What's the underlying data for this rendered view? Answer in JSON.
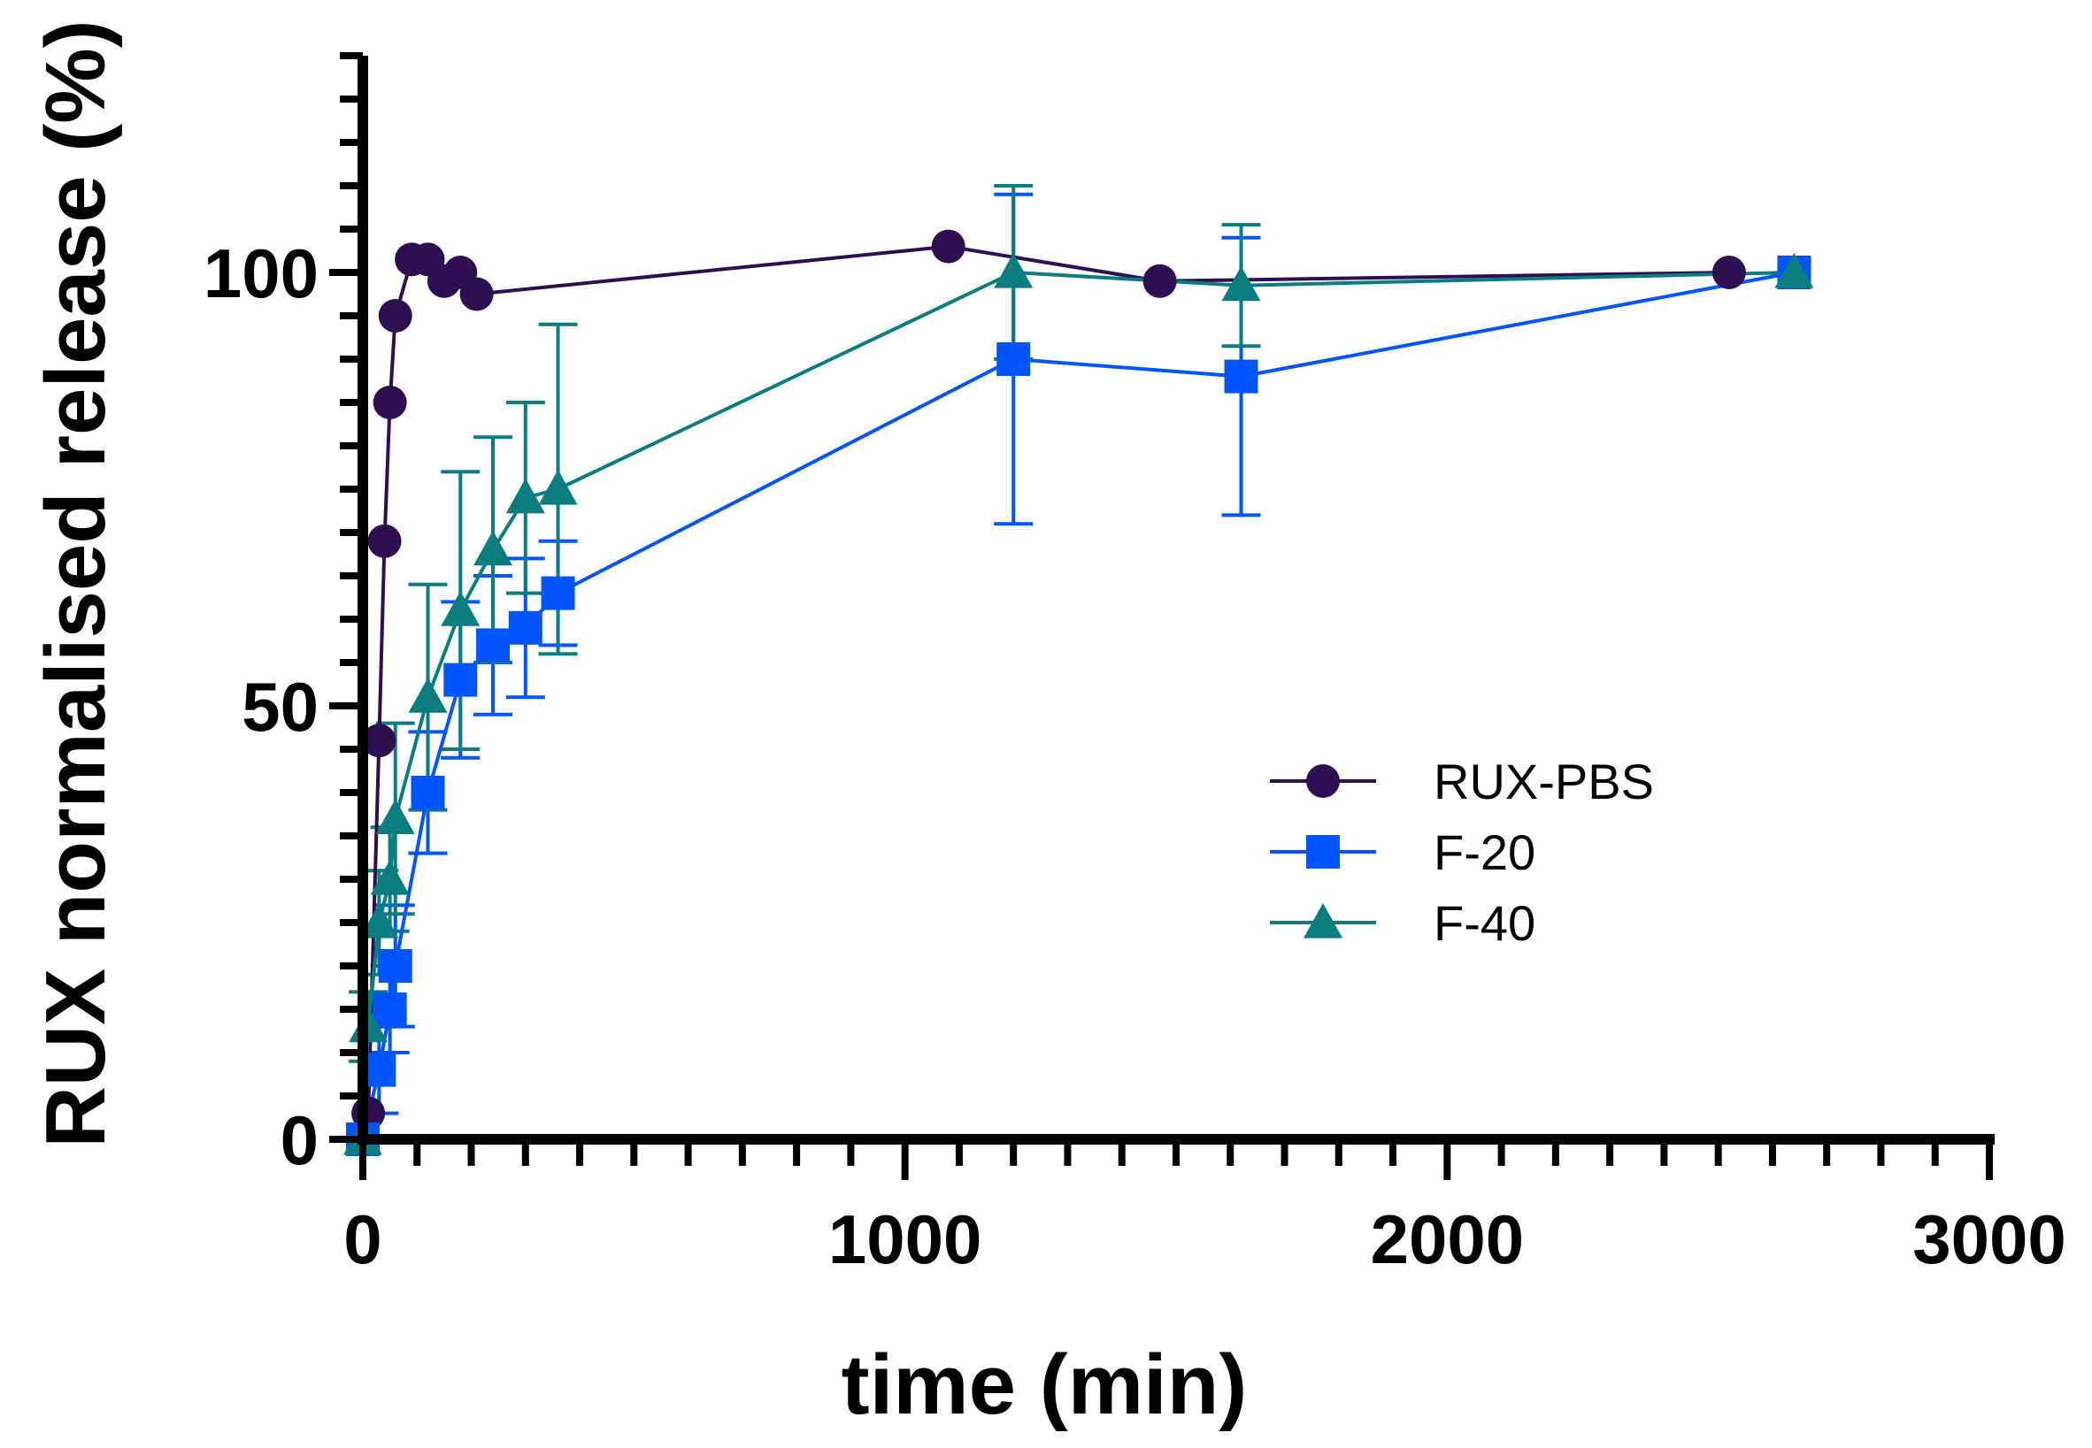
{
  "chart_data": {
    "type": "line",
    "title": "",
    "xlabel": "time (min)",
    "ylabel": "RUX normalised release (%)",
    "xlim": [
      0,
      3000
    ],
    "ylim": [
      0,
      125
    ],
    "x_ticks": [
      0,
      1000,
      2000,
      3000
    ],
    "x_tick_labels": [
      "0",
      "1000",
      "2000",
      "3000"
    ],
    "y_ticks": [
      0,
      50,
      100
    ],
    "y_tick_labels": [
      "0",
      "50",
      "100"
    ],
    "grid": false,
    "legend_position": "center-right",
    "series": [
      {
        "name": "RUX-PBS",
        "color": "#2d0f52",
        "marker": "circle",
        "x": [
          0,
          10,
          30,
          40,
          50,
          60,
          90,
          120,
          150,
          180,
          210,
          1080,
          1470,
          2520
        ],
        "y": [
          0,
          3,
          46,
          69,
          85,
          95,
          101.5,
          101.5,
          99,
          100,
          97.5,
          103,
          99,
          100
        ],
        "err": [
          0,
          0,
          0,
          0,
          0,
          0,
          0,
          0,
          0,
          0,
          0,
          0,
          0,
          0
        ]
      },
      {
        "name": "F-20",
        "color": "#0055ff",
        "marker": "square",
        "x": [
          0,
          30,
          50,
          60,
          120,
          180,
          240,
          300,
          360,
          1200,
          1620,
          2640
        ],
        "y": [
          0,
          8,
          15,
          20,
          40,
          53,
          57,
          59,
          63,
          90,
          88,
          100
        ],
        "err": [
          0,
          5,
          5,
          7,
          7,
          9,
          8,
          8,
          6,
          19,
          16,
          0
        ]
      },
      {
        "name": "F-40",
        "color": "#0b7c80",
        "marker": "triangle",
        "x": [
          0,
          10,
          30,
          50,
          60,
          120,
          180,
          240,
          300,
          360,
          1200,
          1620,
          2640
        ],
        "y": [
          0,
          13,
          25,
          30,
          37,
          51,
          61,
          68,
          74,
          75,
          100,
          98.5,
          100
        ],
        "err": [
          0,
          4,
          6,
          6,
          11,
          13,
          16,
          13,
          11,
          19,
          10,
          7,
          0
        ]
      }
    ]
  }
}
